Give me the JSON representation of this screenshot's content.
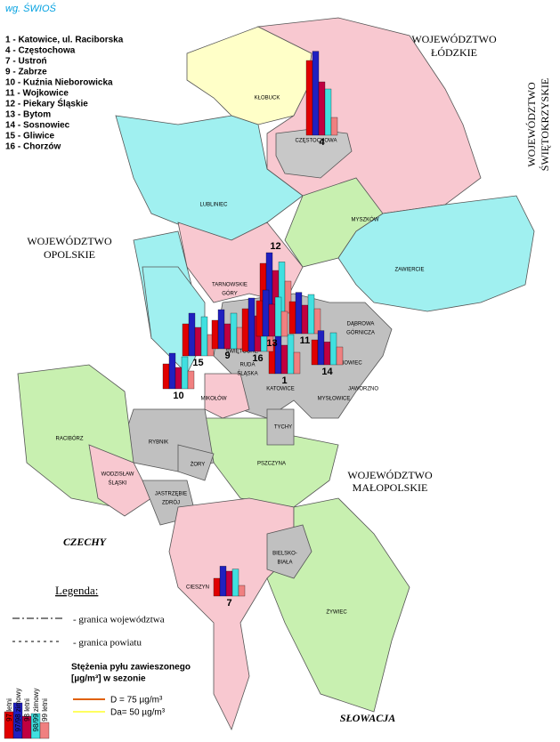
{
  "source": "wg. ŚWIOŚ",
  "stations_list": [
    "1 - Katowice, ul. Raciborska",
    "4 - Częstochowa",
    "7 - Ustroń",
    "9 - Zabrze",
    "10 - Kuźnia Nieborowicka",
    "11 - Wojkowice",
    "12 - Piekary Śląskie",
    "13 - Bytom",
    "14 - Sosnowiec",
    "15 - Gliwice",
    "16 - Chorzów"
  ],
  "regions": [
    "WOJEWÓDZTWO",
    "ŁÓDZKIE",
    "WOJEWÓDZTWO",
    "ŚWIĘTOKRZYSKIE",
    "WOJEWÓDZTWO",
    "OPOLSKIE",
    "WOJEWÓDZTWO",
    "MAŁOPOLSKIE",
    "CZECHY",
    "SŁOWACJA"
  ],
  "counties": [
    "KŁOBUCK",
    "CZĘSTOCHOWA",
    "LUBLINIEC",
    "MYSZKÓW",
    "ZAWIERCIE",
    "TARNOWSKIE",
    "GÓRY",
    "DĄBROWA",
    "GÓRNICZA",
    "RUDA",
    "ŚLĄSKA",
    "ŚWIĘTOCHŁ.",
    "KATOWICE",
    "SOSNOWIEC",
    "JAWORZNO",
    "MYSŁOWICE",
    "MIKOŁÓW",
    "TYCHY",
    "RACIBÓRZ",
    "RYBNIK",
    "ŻORY",
    "WODZISŁAW",
    "ŚLĄSKI",
    "JASTRZĘBIE",
    "ZDRÓJ",
    "PSZCZYNA",
    "BIELSKO-",
    "BIAŁA",
    "CIESZYN",
    "ŻYWIEC"
  ],
  "legend": {
    "title": "Legenda:",
    "border_voivodeship": "- granica województwa",
    "border_county": "- granica powiatu",
    "conc_title": "Stężenia pyłu zawieszonego",
    "conc_unit": "[µg/m³] w sezonie",
    "thresholds": [
      {
        "label": "D = 75 µg/m³",
        "color": "#e06000"
      },
      {
        "label": "Da= 50 µg/m³",
        "color": "#ffff60"
      }
    ]
  },
  "series": [
    {
      "name": "97 letni",
      "color": "#e00000"
    },
    {
      "name": "97/98 zimowy",
      "color": "#2020c0"
    },
    {
      "name": "98 letni",
      "color": "#c00040"
    },
    {
      "name": "98/99 zimowy",
      "color": "#40e0e0"
    },
    {
      "name": "99 letni",
      "color": "#f08080"
    }
  ],
  "stations": [
    {
      "label": "4",
      "values": [
        105,
        118,
        75,
        65,
        25
      ]
    },
    {
      "label": "12",
      "values": [
        70,
        85,
        60,
        72,
        45
      ]
    },
    {
      "label": "1",
      "values": [
        45,
        60,
        40,
        55,
        30
      ]
    },
    {
      "label": "15",
      "values": [
        45,
        60,
        40,
        55,
        30
      ]
    },
    {
      "label": "9",
      "values": [
        40,
        55,
        35,
        50,
        30
      ]
    },
    {
      "label": "10",
      "values": [
        35,
        50,
        30,
        45,
        25
      ]
    },
    {
      "label": "16",
      "values": [
        60,
        75,
        50,
        60,
        40
      ]
    },
    {
      "label": "13",
      "values": [
        50,
        65,
        45,
        55,
        35
      ]
    },
    {
      "label": "11",
      "values": [
        45,
        58,
        40,
        55,
        35
      ]
    },
    {
      "label": "14",
      "values": [
        35,
        48,
        32,
        45,
        25
      ]
    },
    {
      "label": "7",
      "values": [
        25,
        42,
        35,
        38,
        15
      ]
    }
  ]
}
